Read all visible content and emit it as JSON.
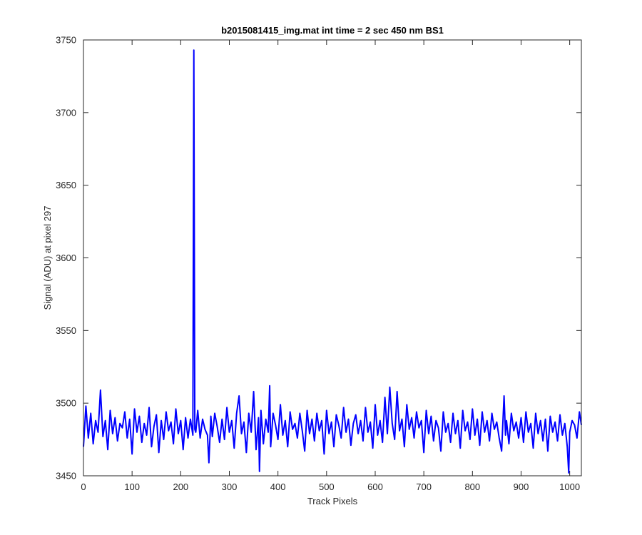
{
  "chart_data": {
    "type": "line",
    "title": "b2015081415_img.mat int time = 2 sec  450 nm BS1",
    "xlabel": "Track Pixels",
    "ylabel": "Signal (ADU) at pixel 297",
    "xlim": [
      0,
      1024
    ],
    "ylim": [
      3450,
      3750
    ],
    "xticks": [
      0,
      100,
      200,
      300,
      400,
      500,
      600,
      700,
      800,
      900,
      1000
    ],
    "yticks": [
      3450,
      3500,
      3550,
      3600,
      3650,
      3700,
      3750
    ],
    "grid": false,
    "legend": "none",
    "line_color": "#0000ff",
    "baseline": 3485,
    "noise_range": [
      3455,
      3512
    ],
    "series": [
      {
        "x": [
          0,
          5,
          10,
          15,
          20,
          25,
          30,
          35,
          40,
          45,
          50,
          55,
          60,
          65,
          70,
          75,
          80,
          85,
          90,
          95,
          100,
          105,
          110,
          115,
          120,
          125,
          130,
          135,
          140,
          145,
          150,
          155,
          160,
          165,
          170,
          175,
          180,
          185,
          190,
          195,
          200,
          205,
          210,
          215,
          220,
          225,
          227,
          229,
          231,
          235,
          240,
          245,
          250,
          255,
          258,
          262,
          265,
          270,
          275,
          280,
          285,
          290,
          295,
          300,
          305,
          310,
          315,
          320,
          325,
          330,
          335,
          340,
          345,
          350,
          355,
          360,
          362,
          365,
          370,
          375,
          380,
          383,
          385,
          390,
          395,
          400,
          405,
          410,
          415,
          420,
          425,
          430,
          435,
          440,
          445,
          450,
          455,
          460,
          465,
          470,
          475,
          480,
          485,
          490,
          495,
          500,
          505,
          510,
          515,
          520,
          525,
          530,
          535,
          540,
          545,
          550,
          555,
          560,
          565,
          570,
          575,
          580,
          585,
          590,
          595,
          600,
          605,
          610,
          615,
          620,
          625,
          630,
          635,
          640,
          645,
          650,
          655,
          660,
          665,
          670,
          675,
          680,
          685,
          690,
          695,
          700,
          705,
          710,
          715,
          720,
          725,
          730,
          735,
          740,
          745,
          750,
          755,
          760,
          765,
          770,
          775,
          780,
          785,
          790,
          795,
          800,
          805,
          810,
          815,
          820,
          825,
          830,
          835,
          840,
          845,
          850,
          855,
          860,
          865,
          868,
          870,
          875,
          880,
          885,
          890,
          895,
          900,
          905,
          910,
          915,
          920,
          925,
          930,
          935,
          940,
          945,
          950,
          955,
          960,
          965,
          970,
          975,
          980,
          985,
          990,
          995,
          998,
          1000,
          1005,
          1010,
          1015,
          1020,
          1024
        ],
        "y": [
          3470,
          3498,
          3476,
          3493,
          3472,
          3488,
          3480,
          3509,
          3477,
          3488,
          3468,
          3495,
          3479,
          3490,
          3474,
          3486,
          3483,
          3494,
          3476,
          3489,
          3465,
          3496,
          3480,
          3491,
          3473,
          3486,
          3478,
          3497,
          3470,
          3484,
          3492,
          3466,
          3488,
          3475,
          3494,
          3481,
          3487,
          3472,
          3496,
          3479,
          3488,
          3468,
          3490,
          3476,
          3489,
          3478,
          3743,
          3482,
          3480,
          3495,
          3476,
          3489,
          3482,
          3478,
          3459,
          3491,
          3477,
          3493,
          3484,
          3473,
          3489,
          3475,
          3497,
          3480,
          3488,
          3469,
          3493,
          3505,
          3479,
          3487,
          3466,
          3493,
          3480,
          3508,
          3468,
          3490,
          3453,
          3495,
          3472,
          3489,
          3480,
          3512,
          3470,
          3493,
          3485,
          3475,
          3499,
          3478,
          3488,
          3470,
          3494,
          3482,
          3486,
          3476,
          3493,
          3481,
          3467,
          3495,
          3479,
          3489,
          3474,
          3493,
          3481,
          3488,
          3465,
          3495,
          3479,
          3487,
          3470,
          3492,
          3485,
          3476,
          3497,
          3480,
          3489,
          3471,
          3486,
          3492,
          3479,
          3488,
          3474,
          3497,
          3480,
          3487,
          3469,
          3499,
          3478,
          3488,
          3473,
          3504,
          3479,
          3511,
          3486,
          3475,
          3508,
          3481,
          3489,
          3470,
          3499,
          3482,
          3490,
          3476,
          3494,
          3483,
          3488,
          3466,
          3495,
          3479,
          3491,
          3474,
          3488,
          3483,
          3467,
          3494,
          3480,
          3486,
          3473,
          3493,
          3479,
          3488,
          3469,
          3495,
          3481,
          3487,
          3475,
          3496,
          3478,
          3489,
          3471,
          3494,
          3480,
          3488,
          3474,
          3493,
          3482,
          3487,
          3476,
          3467,
          3505,
          3478,
          3488,
          3472,
          3493,
          3481,
          3487,
          3476,
          3490,
          3473,
          3494,
          3480,
          3486,
          3469,
          3493,
          3479,
          3488,
          3474,
          3489,
          3467,
          3491,
          3480,
          3487,
          3474,
          3492,
          3478,
          3486,
          3470,
          3452,
          3480,
          3488,
          3485,
          3476,
          3494,
          3485
        ]
      }
    ]
  }
}
